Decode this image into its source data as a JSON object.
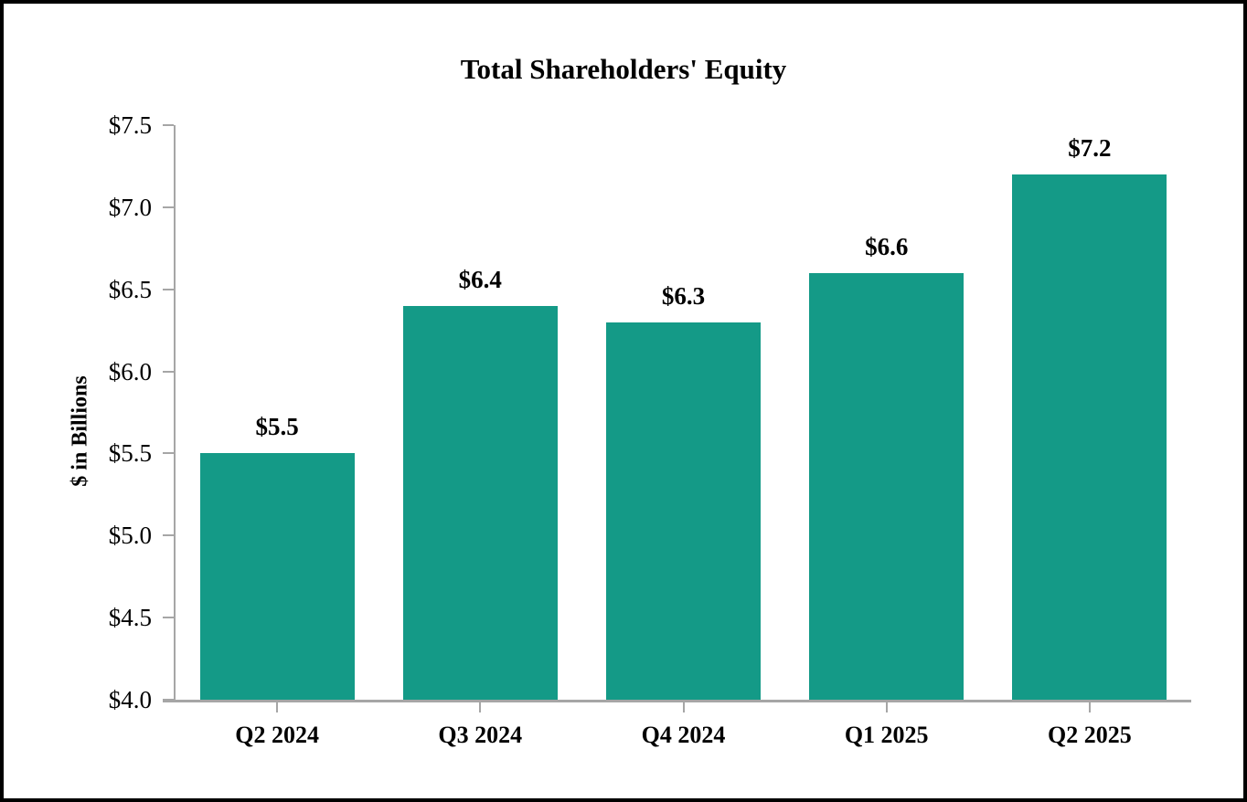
{
  "chart_title": "Total Shareholders' Equity",
  "colors": {
    "bar": "#149a87",
    "axis": "#a6a6a6",
    "text": "#000000",
    "frame_border": "#000000",
    "background": "#ffffff"
  },
  "chart_data": {
    "type": "bar",
    "title": "Total Shareholders' Equity",
    "xlabel": "",
    "ylabel": "$ in Billions",
    "categories": [
      "Q2 2024",
      "Q3 2024",
      "Q4 2024",
      "Q1 2025",
      "Q2 2025"
    ],
    "values": [
      5.5,
      6.4,
      6.3,
      6.6,
      7.2
    ],
    "bar_labels": [
      "$5.5",
      "$6.4",
      "$6.3",
      "$6.6",
      "$7.2"
    ],
    "ylim": [
      4.0,
      7.5
    ],
    "ytick_step": 0.5,
    "ytick_labels": [
      "$4.0",
      "$4.5",
      "$5.0",
      "$5.5",
      "$6.0",
      "$6.5",
      "$7.0",
      "$7.5"
    ],
    "grid": false,
    "legend_position": "none",
    "bar_color": "#149a87"
  }
}
